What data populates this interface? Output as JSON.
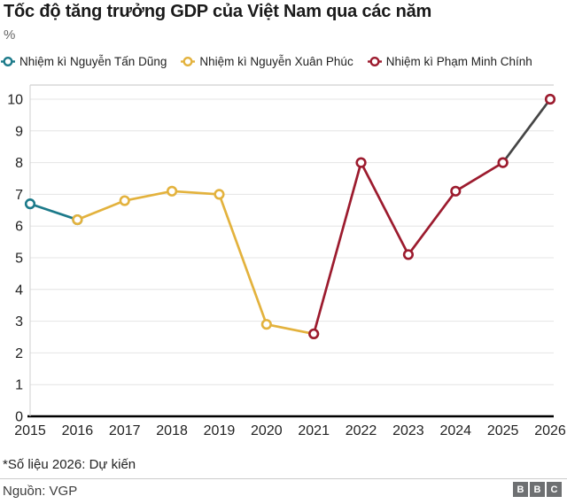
{
  "header": {
    "title": "Tốc độ tăng trưởng GDP của Việt Nam qua các năm",
    "unit_label": "%"
  },
  "legend": {
    "items": [
      {
        "label": "Nhiệm kì Nguyễn Tấn Dũng",
        "color": "#1c7a8a"
      },
      {
        "label": "Nhiệm kì Nguyễn Xuân Phúc",
        "color": "#e3b23d"
      },
      {
        "label": "Nhiệm kì Phạm Minh Chính",
        "color": "#9c1b2e"
      }
    ]
  },
  "chart_data": {
    "type": "line",
    "title": "Tốc độ tăng trưởng GDP của Việt Nam qua các năm",
    "ylabel": "%",
    "xlabel": "",
    "x_labels": [
      "2015",
      "2016",
      "2017",
      "2018",
      "2019",
      "2020",
      "2021",
      "2022",
      "2023",
      "2024",
      "2025",
      "2026"
    ],
    "ylim": [
      0,
      10
    ],
    "yticks": [
      0,
      1,
      2,
      3,
      4,
      5,
      6,
      7,
      8,
      9,
      10
    ],
    "grid": true,
    "legend_position": "top",
    "colors": {
      "grid": "#e4e4e4",
      "zero_axis": "#000000",
      "left_axis": "#cfcfcf",
      "top_border": "#c6c6c6",
      "tick_text": "#222222",
      "projection_line": "#454545"
    },
    "series": [
      {
        "name": "Nhiệm kì Nguyễn Tấn Dũng",
        "line_color": "#1c7a8a",
        "marker_color": "#1c7a8a",
        "points": [
          {
            "x": "2015",
            "y": 6.7
          },
          {
            "x": "2016",
            "y": 6.2
          }
        ]
      },
      {
        "name": "Nhiệm kì Nguyễn Xuân Phúc",
        "line_color": "#e3b23d",
        "marker_color": "#e3b23d",
        "points": [
          {
            "x": "2016",
            "y": 6.2
          },
          {
            "x": "2017",
            "y": 6.8
          },
          {
            "x": "2018",
            "y": 7.1
          },
          {
            "x": "2019",
            "y": 7.0
          },
          {
            "x": "2020",
            "y": 2.9
          },
          {
            "x": "2021",
            "y": 2.6
          }
        ]
      },
      {
        "name": "Nhiệm kì Phạm Minh Chính",
        "line_color": "#9c1b2e",
        "marker_color": "#9c1b2e",
        "points": [
          {
            "x": "2021",
            "y": 2.6
          },
          {
            "x": "2022",
            "y": 8.0
          },
          {
            "x": "2023",
            "y": 5.1
          },
          {
            "x": "2024",
            "y": 7.1
          },
          {
            "x": "2025",
            "y": 8.0
          }
        ]
      },
      {
        "name": "Dự kiến (2026)",
        "line_color": "#454545",
        "marker_color": "#9c1b2e",
        "points": [
          {
            "x": "2025",
            "y": 8.0
          },
          {
            "x": "2026",
            "y": 10.0
          }
        ]
      }
    ]
  },
  "footer": {
    "footnote": "*Số liệu 2026: Dự kiến",
    "source": "Nguồn: VGP",
    "logo_letters": [
      "B",
      "B",
      "C"
    ]
  }
}
